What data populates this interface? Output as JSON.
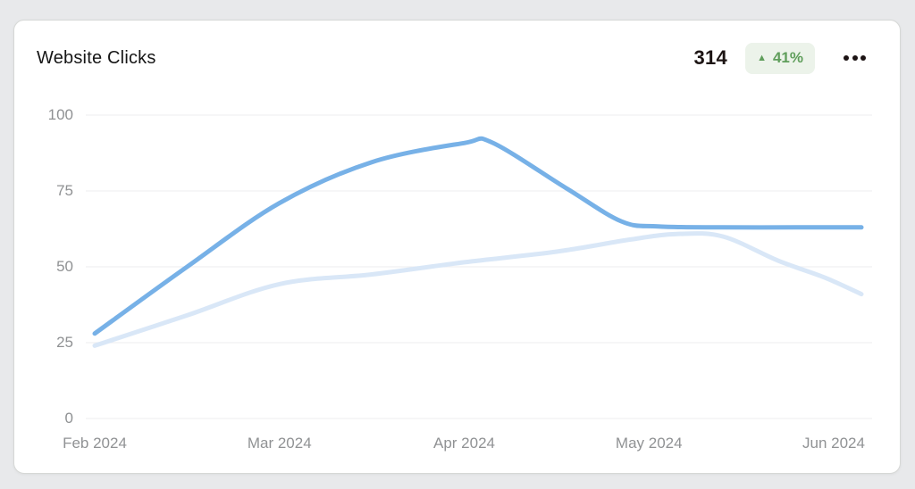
{
  "page": {
    "background": "#e8e9eb",
    "card_background": "#ffffff"
  },
  "card": {
    "title": "Website Clicks",
    "total": "314",
    "change_percent": "41%",
    "trend_direction": "up",
    "trend_icon": "triangle-up",
    "menu_icon": "ellipsis-horizontal",
    "colors": {
      "badge_background": "#ecf3ea",
      "badge_text": "#5f9e5b",
      "total_text": "#1d1514",
      "title_text": "#161616"
    }
  },
  "chart_data": {
    "type": "line",
    "title": "Website Clicks",
    "categories": [
      "Feb 2024",
      "Mar 2024",
      "Apr 2024",
      "May 2024",
      "Jun 2024"
    ],
    "y_ticks": [
      100,
      75,
      50,
      25,
      0
    ],
    "ylim": [
      0,
      100
    ],
    "grid": "horizontal-only",
    "grid_color": "#f0f0f2",
    "tick_label_color": "#909294",
    "legend": "none",
    "x_unit": "month-index (0 = Feb 2024, lines extend to 4.15 ≈ early Jun)",
    "series": [
      {
        "name": "current-period",
        "color": "#77b1e7",
        "stroke_width": 5,
        "monthly_values": [
          28,
          71,
          91,
          63,
          63
        ],
        "peak": {
          "value": 91,
          "month_index": 2.1
        },
        "points": [
          [
            0,
            28
          ],
          [
            0.5,
            50
          ],
          [
            1,
            71
          ],
          [
            1.5,
            84.5
          ],
          [
            2,
            90.8
          ],
          [
            2.15,
            91
          ],
          [
            2.55,
            76
          ],
          [
            2.85,
            65
          ],
          [
            3.05,
            63.3
          ],
          [
            3.4,
            63
          ],
          [
            3.8,
            63
          ],
          [
            4.15,
            63
          ]
        ]
      },
      {
        "name": "previous-period",
        "color": "#d9e7f7",
        "stroke_width": 5,
        "monthly_values": [
          24,
          44,
          52,
          61,
          45
        ],
        "peak": {
          "value": 61,
          "month_index": 3.15
        },
        "points": [
          [
            0,
            24
          ],
          [
            0.5,
            34
          ],
          [
            1,
            44.3
          ],
          [
            1.5,
            47.5
          ],
          [
            2,
            51.5
          ],
          [
            2.5,
            55
          ],
          [
            2.9,
            59
          ],
          [
            3.15,
            60.8
          ],
          [
            3.4,
            60
          ],
          [
            3.7,
            52
          ],
          [
            3.95,
            46.5
          ],
          [
            4.15,
            41
          ]
        ]
      }
    ]
  }
}
